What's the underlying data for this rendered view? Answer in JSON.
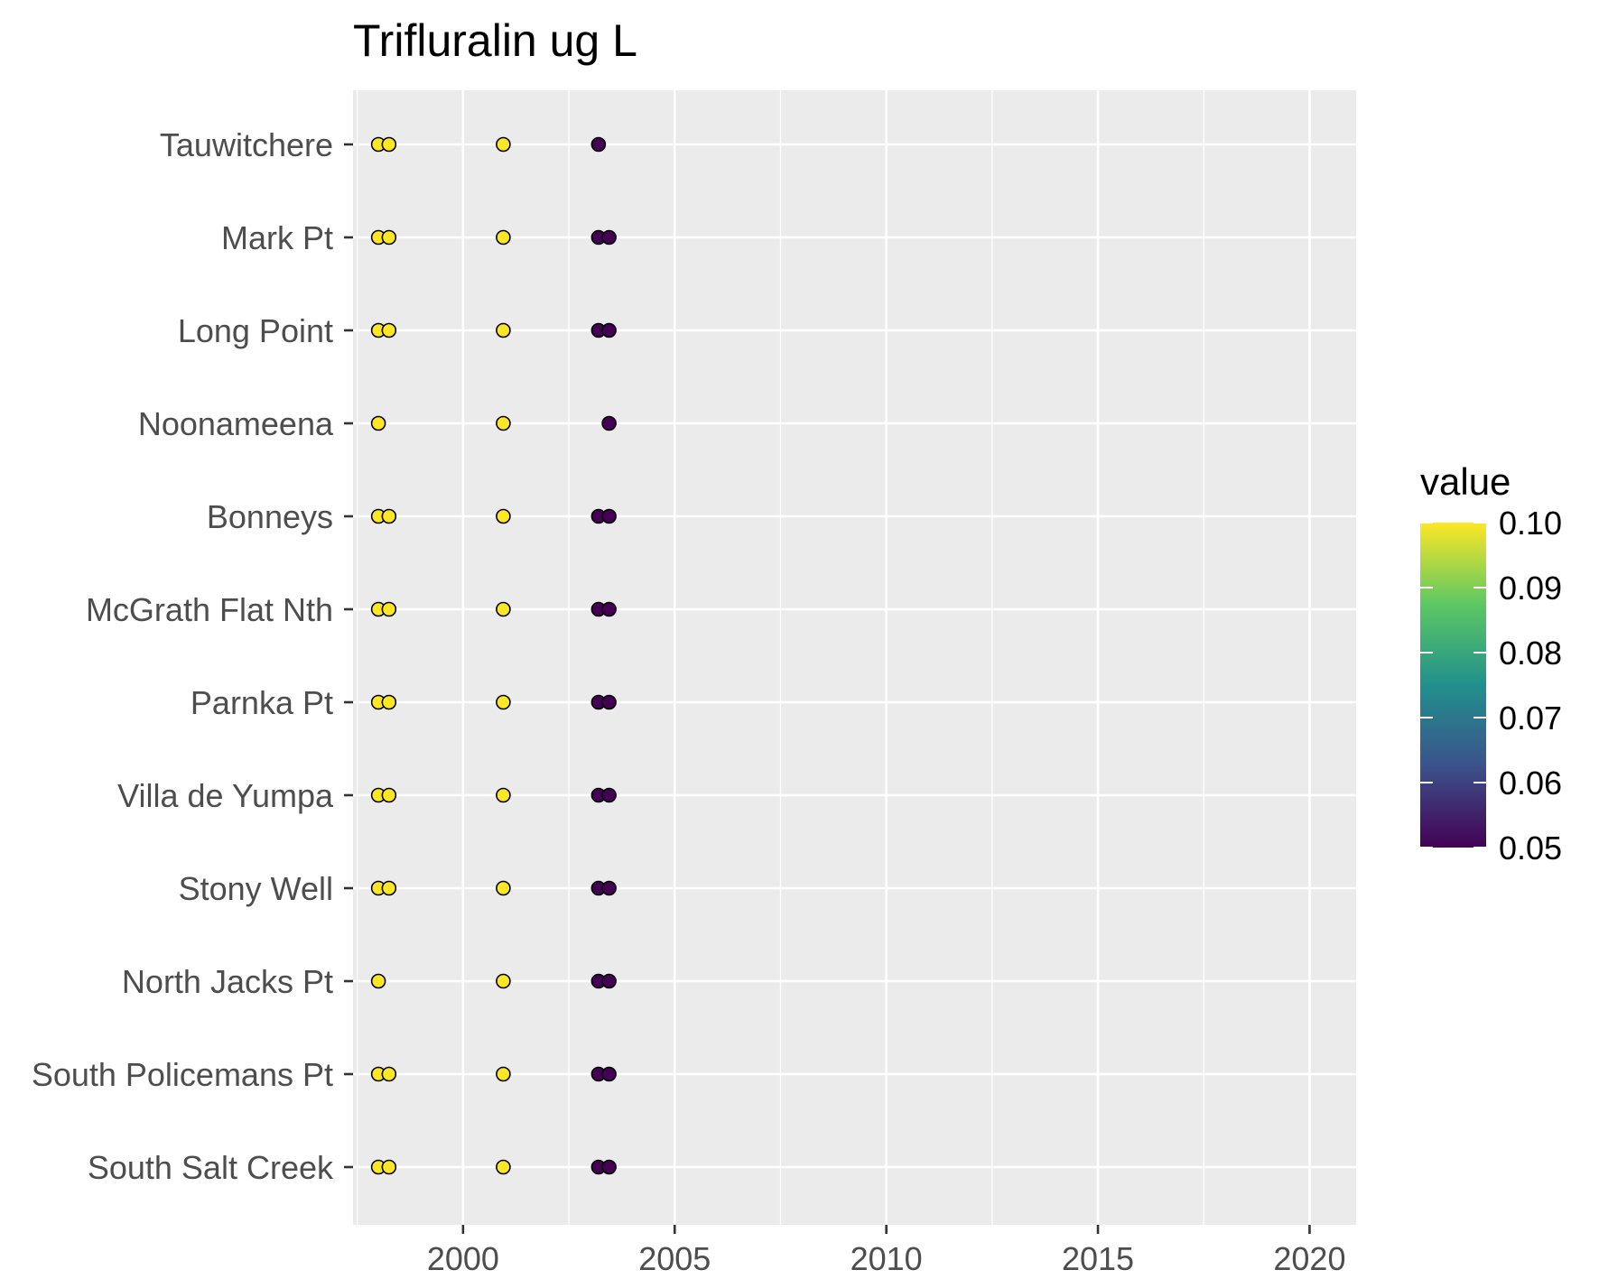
{
  "chart_data": {
    "type": "scatter",
    "title": "Trifluralin ug L",
    "xlabel": "",
    "ylabel": "",
    "xlim": [
      1997.4,
      2021.1
    ],
    "x_ticks": [
      2000,
      2005,
      2010,
      2015,
      2020
    ],
    "x_tick_labels": [
      "2000",
      "2005",
      "2010",
      "2015",
      "2020"
    ],
    "categories": [
      "Tauwitchere",
      "Mark Pt",
      "Long Point",
      "Noonameena",
      "Bonneys",
      "McGrath Flat Nth",
      "Parnka Pt",
      "Villa de Yumpa",
      "Stony Well",
      "North Jacks Pt",
      "South Policemans Pt",
      "South Salt Creek"
    ],
    "grid": true,
    "color_scale": {
      "name": "value",
      "range": [
        0.05,
        0.1
      ],
      "ticks": [
        "0.10",
        "0.09",
        "0.08",
        "0.07",
        "0.06",
        "0.05"
      ],
      "palette": [
        "#440154",
        "#3b528b",
        "#21908c",
        "#5dc863",
        "#fde725"
      ]
    },
    "legend_position": "right",
    "points": [
      {
        "site": "Tauwitchere",
        "x": 1998.0,
        "value": 0.1
      },
      {
        "site": "Tauwitchere",
        "x": 1998.25,
        "value": 0.1
      },
      {
        "site": "Tauwitchere",
        "x": 2000.95,
        "value": 0.1
      },
      {
        "site": "Tauwitchere",
        "x": 2003.2,
        "value": 0.05
      },
      {
        "site": "Mark Pt",
        "x": 1998.0,
        "value": 0.1
      },
      {
        "site": "Mark Pt",
        "x": 1998.25,
        "value": 0.1
      },
      {
        "site": "Mark Pt",
        "x": 2000.95,
        "value": 0.1
      },
      {
        "site": "Mark Pt",
        "x": 2003.2,
        "value": 0.05
      },
      {
        "site": "Mark Pt",
        "x": 2003.45,
        "value": 0.05
      },
      {
        "site": "Long Point",
        "x": 1998.0,
        "value": 0.1
      },
      {
        "site": "Long Point",
        "x": 1998.25,
        "value": 0.1
      },
      {
        "site": "Long Point",
        "x": 2000.95,
        "value": 0.1
      },
      {
        "site": "Long Point",
        "x": 2003.2,
        "value": 0.05
      },
      {
        "site": "Long Point",
        "x": 2003.45,
        "value": 0.05
      },
      {
        "site": "Noonameena",
        "x": 1998.0,
        "value": 0.1
      },
      {
        "site": "Noonameena",
        "x": 2000.95,
        "value": 0.1
      },
      {
        "site": "Noonameena",
        "x": 2003.45,
        "value": 0.05
      },
      {
        "site": "Bonneys",
        "x": 1998.0,
        "value": 0.1
      },
      {
        "site": "Bonneys",
        "x": 1998.25,
        "value": 0.1
      },
      {
        "site": "Bonneys",
        "x": 2000.95,
        "value": 0.1
      },
      {
        "site": "Bonneys",
        "x": 2003.2,
        "value": 0.05
      },
      {
        "site": "Bonneys",
        "x": 2003.45,
        "value": 0.05
      },
      {
        "site": "McGrath Flat Nth",
        "x": 1998.0,
        "value": 0.1
      },
      {
        "site": "McGrath Flat Nth",
        "x": 1998.25,
        "value": 0.1
      },
      {
        "site": "McGrath Flat Nth",
        "x": 2000.95,
        "value": 0.1
      },
      {
        "site": "McGrath Flat Nth",
        "x": 2003.2,
        "value": 0.05
      },
      {
        "site": "McGrath Flat Nth",
        "x": 2003.45,
        "value": 0.05
      },
      {
        "site": "Parnka Pt",
        "x": 1998.0,
        "value": 0.1
      },
      {
        "site": "Parnka Pt",
        "x": 1998.25,
        "value": 0.1
      },
      {
        "site": "Parnka Pt",
        "x": 2000.95,
        "value": 0.1
      },
      {
        "site": "Parnka Pt",
        "x": 2003.2,
        "value": 0.05
      },
      {
        "site": "Parnka Pt",
        "x": 2003.45,
        "value": 0.05
      },
      {
        "site": "Villa de Yumpa",
        "x": 1998.0,
        "value": 0.1
      },
      {
        "site": "Villa de Yumpa",
        "x": 1998.25,
        "value": 0.1
      },
      {
        "site": "Villa de Yumpa",
        "x": 2000.95,
        "value": 0.1
      },
      {
        "site": "Villa de Yumpa",
        "x": 2003.2,
        "value": 0.05
      },
      {
        "site": "Villa de Yumpa",
        "x": 2003.45,
        "value": 0.05
      },
      {
        "site": "Stony Well",
        "x": 1998.0,
        "value": 0.1
      },
      {
        "site": "Stony Well",
        "x": 1998.25,
        "value": 0.1
      },
      {
        "site": "Stony Well",
        "x": 2000.95,
        "value": 0.1
      },
      {
        "site": "Stony Well",
        "x": 2003.2,
        "value": 0.05
      },
      {
        "site": "Stony Well",
        "x": 2003.45,
        "value": 0.05
      },
      {
        "site": "North Jacks Pt",
        "x": 1998.0,
        "value": 0.1
      },
      {
        "site": "North Jacks Pt",
        "x": 2000.95,
        "value": 0.1
      },
      {
        "site": "North Jacks Pt",
        "x": 2003.2,
        "value": 0.05
      },
      {
        "site": "North Jacks Pt",
        "x": 2003.45,
        "value": 0.05
      },
      {
        "site": "South Policemans Pt",
        "x": 1998.0,
        "value": 0.1
      },
      {
        "site": "South Policemans Pt",
        "x": 1998.25,
        "value": 0.1
      },
      {
        "site": "South Policemans Pt",
        "x": 2000.95,
        "value": 0.1
      },
      {
        "site": "South Policemans Pt",
        "x": 2003.2,
        "value": 0.05
      },
      {
        "site": "South Policemans Pt",
        "x": 2003.45,
        "value": 0.05
      },
      {
        "site": "South Salt Creek",
        "x": 1998.0,
        "value": 0.1
      },
      {
        "site": "South Salt Creek",
        "x": 1998.25,
        "value": 0.1
      },
      {
        "site": "South Salt Creek",
        "x": 2000.95,
        "value": 0.1
      },
      {
        "site": "South Salt Creek",
        "x": 2003.2,
        "value": 0.05
      },
      {
        "site": "South Salt Creek",
        "x": 2003.45,
        "value": 0.05
      }
    ]
  }
}
